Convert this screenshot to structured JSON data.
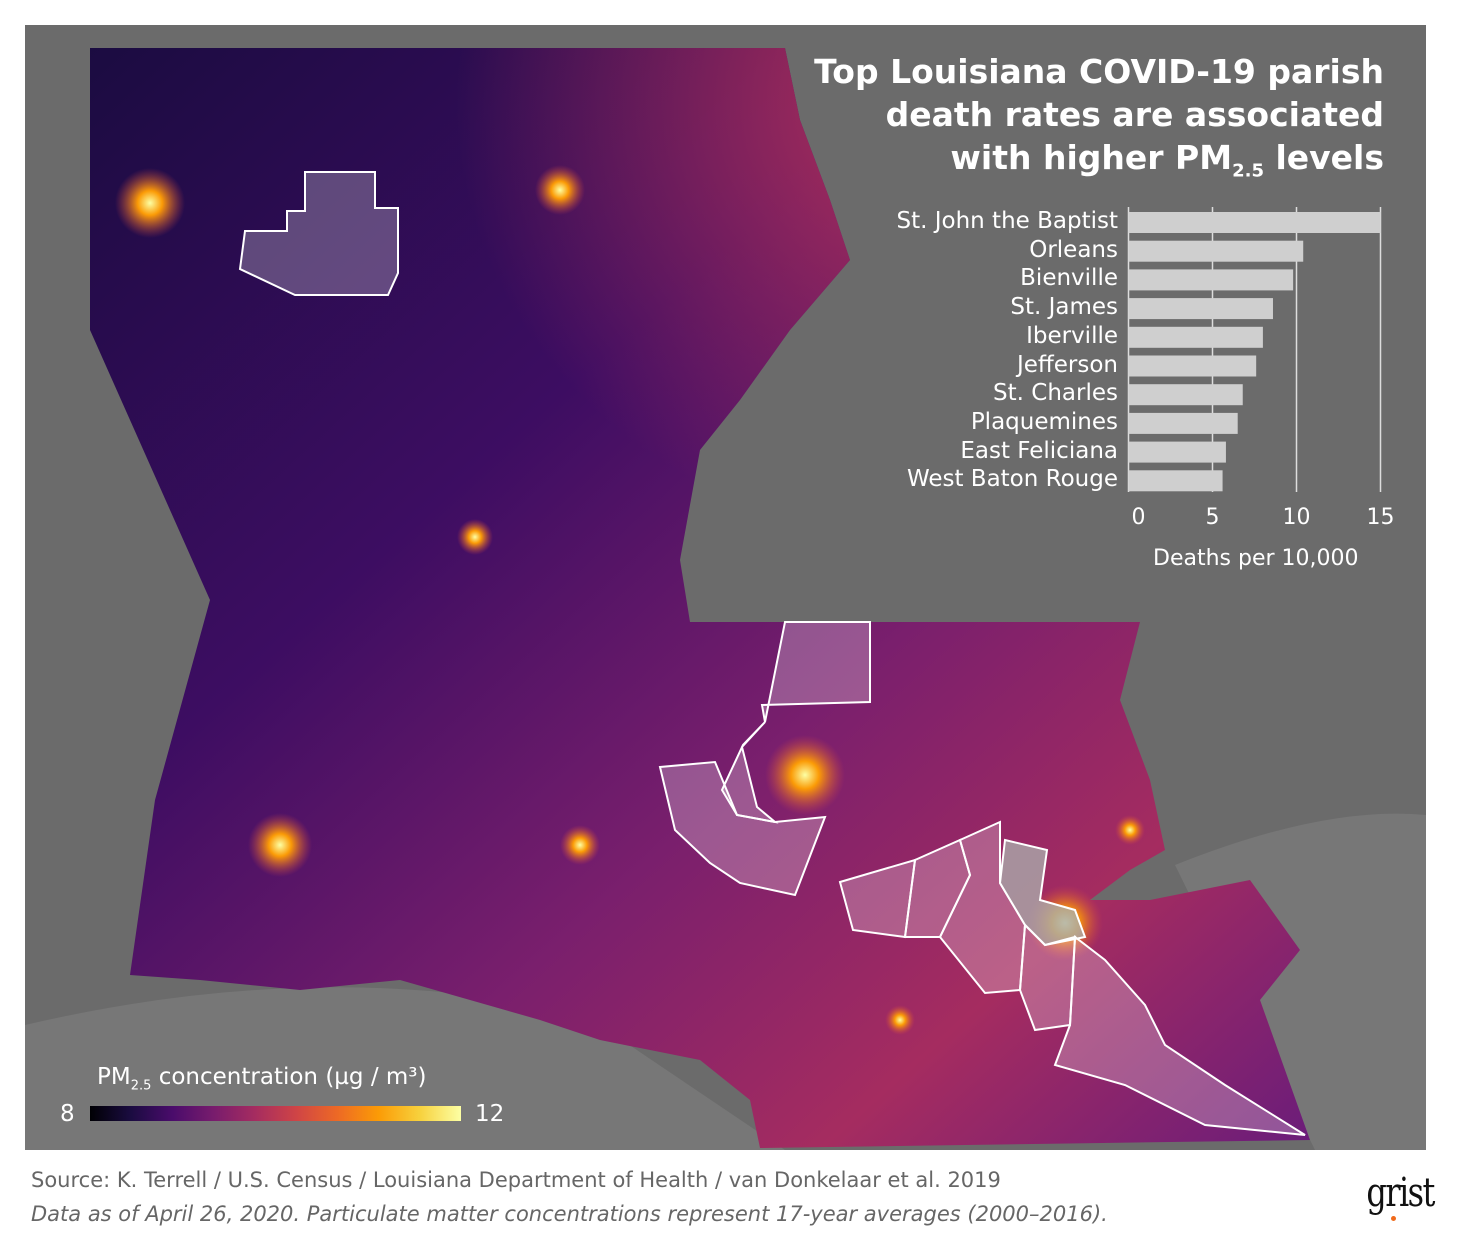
{
  "title": {
    "line1": "Top Louisiana COVID-19 parish",
    "line2": "death rates are associated",
    "line3_pre": "with higher PM",
    "line3_sub": "2.5",
    "line3_post": " levels"
  },
  "chart_data": {
    "type": "bar",
    "orientation": "horizontal",
    "categories": [
      "St. John the Baptist",
      "Orleans",
      "Bienville",
      "St. James",
      "Iberville",
      "Jefferson",
      "St. Charles",
      "Plaquemines",
      "East Feliciana",
      "West Baton Rouge"
    ],
    "values": [
      15.0,
      10.4,
      9.8,
      8.6,
      8.0,
      7.6,
      6.8,
      6.5,
      5.8,
      5.6
    ],
    "xlabel": "Deaths per 10,000",
    "xticks": [
      "0",
      "5",
      "10",
      "15"
    ],
    "xlim": [
      0,
      15
    ],
    "grid": true,
    "bar_color": "#cfcfcf"
  },
  "legend": {
    "title_pre": "PM",
    "title_sub": "2.5",
    "title_post": " concentration (µg / m³)",
    "min": "8",
    "max": "12",
    "colormap": "inferno"
  },
  "footer": {
    "source": "Source: K. Terrell / U.S. Census / Louisiana Department of Health / van Donkelaar et al. 2019",
    "note": "Data as of April 26, 2020. Particulate matter concentrations represent 17-year averages (2000–2016).",
    "logo": "grist",
    "accent": "#f06a1b"
  }
}
